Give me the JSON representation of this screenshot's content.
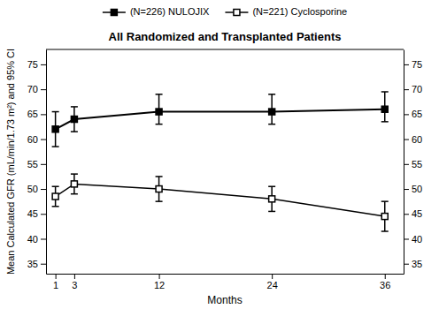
{
  "chart_data": {
    "type": "line",
    "title": "All Randomized and Transplanted Patients",
    "x_label": "Months",
    "y_label": "Mean Calculated GFR (mL/min/1.73 m²) and 95% CI",
    "x": [
      1,
      3,
      12,
      24,
      36
    ],
    "series": [
      {
        "name": "(N=226) NULOJIX",
        "color": "#000000",
        "marker": "square",
        "line_style": "solid",
        "values": [
          62,
          64,
          65.5,
          65.5,
          66
        ],
        "yerr_lo": [
          3.5,
          2.5,
          2.5,
          2.5,
          2.5
        ],
        "yerr_hi": [
          3.5,
          2.5,
          3.5,
          3.5,
          3.5
        ]
      },
      {
        "name": "(N=221) Cyclosporine",
        "color": "#000000",
        "marker": "square-open",
        "line_style": "solid",
        "values": [
          48.5,
          51,
          50,
          48,
          44.5
        ],
        "yerr_lo": [
          2.0,
          2.0,
          2.5,
          2.5,
          3.0
        ],
        "yerr_hi": [
          2.0,
          2.0,
          2.5,
          2.5,
          3.0
        ]
      }
    ],
    "xlim": [
      0,
      38
    ],
    "xticks": [
      1,
      3,
      12,
      24,
      36
    ],
    "ylim": [
      33,
      78
    ],
    "yticks": [
      35,
      40,
      45,
      50,
      55,
      60,
      65,
      70,
      75
    ],
    "y2lim": [
      33,
      78
    ],
    "y2ticks": [
      35,
      40,
      45,
      50,
      55,
      60,
      65,
      70,
      75
    ],
    "grid": false,
    "legend": "top"
  }
}
